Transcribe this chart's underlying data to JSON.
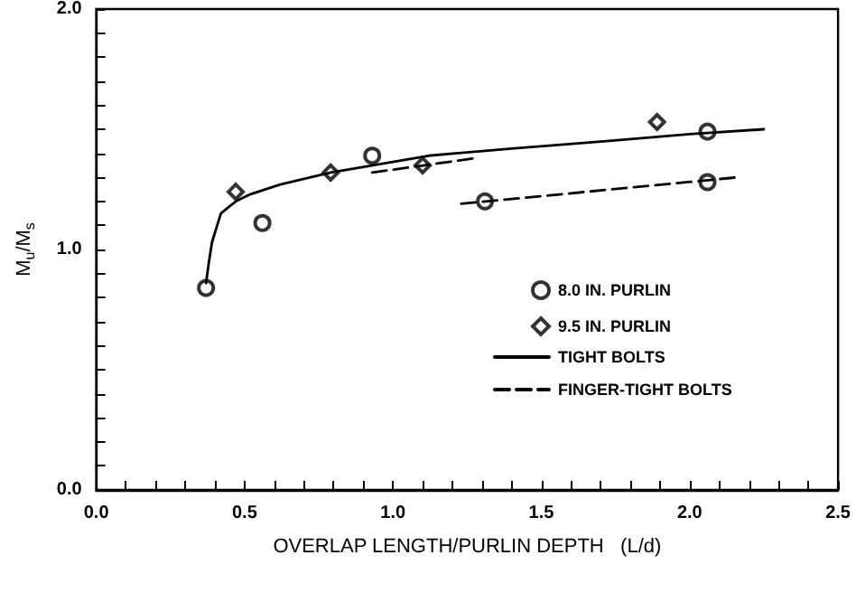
{
  "chart_data": {
    "type": "scatter",
    "xlabel": "OVERLAP LENGTH/PURLIN DEPTH   (L/d)",
    "ylabel": "M$_{u}$/M$_{s}$",
    "xlim": [
      0,
      2.5
    ],
    "xticks": [
      {
        "value": 0,
        "label": "0.0"
      },
      {
        "value": 0.1,
        "label": null
      },
      {
        "value": 0.2,
        "label": null
      },
      {
        "value": 0.3,
        "label": null
      },
      {
        "value": 0.4,
        "label": null
      },
      {
        "value": 0.5,
        "label": "0.5"
      },
      {
        "value": 0.6,
        "label": null
      },
      {
        "value": 0.7,
        "label": null
      },
      {
        "value": 0.8,
        "label": null
      },
      {
        "value": 0.9,
        "label": null
      },
      {
        "value": 1,
        "label": "1.0"
      },
      {
        "value": 1.1,
        "label": null
      },
      {
        "value": 1.2,
        "label": null
      },
      {
        "value": 1.3,
        "label": null
      },
      {
        "value": 1.4,
        "label": null
      },
      {
        "value": 1.5,
        "label": "1.5"
      },
      {
        "value": 1.6,
        "label": null
      },
      {
        "value": 1.7,
        "label": null
      },
      {
        "value": 1.8,
        "label": null
      },
      {
        "value": 1.9,
        "label": null
      },
      {
        "value": 2,
        "label": "2.0"
      },
      {
        "value": 2.1,
        "label": null
      },
      {
        "value": 2.2,
        "label": null
      },
      {
        "value": 2.3,
        "label": null
      },
      {
        "value": 2.4,
        "label": null
      },
      {
        "value": 2.5,
        "label": "2.5"
      }
    ],
    "ylim": [
      0,
      2
    ],
    "yticks": [
      {
        "value": 0,
        "label": "0.0"
      },
      {
        "value": 0.1,
        "label": null
      },
      {
        "value": 0.2,
        "label": null
      },
      {
        "value": 0.3,
        "label": null
      },
      {
        "value": 0.4,
        "label": null
      },
      {
        "value": 0.5,
        "label": null
      },
      {
        "value": 0.6,
        "label": null
      },
      {
        "value": 0.7,
        "label": null
      },
      {
        "value": 0.8,
        "label": null
      },
      {
        "value": 0.9,
        "label": null
      },
      {
        "value": 1,
        "label": "1.0"
      },
      {
        "value": 1.1,
        "label": null
      },
      {
        "value": 1.2,
        "label": null
      },
      {
        "value": 1.3,
        "label": null
      },
      {
        "value": 1.4,
        "label": null
      },
      {
        "value": 1.5,
        "label": null
      },
      {
        "value": 1.6,
        "label": null
      },
      {
        "value": 1.7,
        "label": null
      },
      {
        "value": 1.8,
        "label": null
      },
      {
        "value": 1.9,
        "label": null
      },
      {
        "value": 2,
        "label": "2.0"
      }
    ],
    "grid": false,
    "legend": "right",
    "series": [
      {
        "name": "8.0 IN. PURLIN",
        "type": "scatter",
        "marker": "circle",
        "color": "#000000",
        "x": [
          0.37,
          0.56,
          0.93,
          1.31,
          2.06,
          2.06
        ],
        "values": [
          0.84,
          1.11,
          1.39,
          1.2,
          1.49,
          1.28
        ]
      },
      {
        "name": "9.5 IN. PURLIN",
        "type": "scatter",
        "marker": "diamond",
        "color": "#000000",
        "x": [
          0.47,
          0.79,
          1.1,
          1.89
        ],
        "values": [
          1.24,
          1.32,
          1.35,
          1.53
        ]
      },
      {
        "name": "TIGHT BOLTS",
        "type": "line",
        "marker": "none",
        "line_style": "solid",
        "color": "#000000",
        "x": [
          0.37,
          0.38,
          0.39,
          0.42,
          0.47,
          0.52,
          0.62,
          0.79,
          1.12,
          1.4,
          1.71,
          2.0,
          2.25
        ],
        "values": [
          0.86,
          0.95,
          1.03,
          1.15,
          1.2,
          1.23,
          1.27,
          1.32,
          1.39,
          1.42,
          1.45,
          1.48,
          1.5
        ]
      },
      {
        "name": "FINGER-TIGHT BOLTS",
        "type": "line",
        "marker": "none",
        "line_style": "dashed",
        "color": "#000000",
        "x": [
          0.93,
          1.28
        ],
        "values": [
          1.32,
          1.38
        ]
      },
      {
        "type": "line",
        "marker": "none",
        "line_style": "dashed",
        "color": "#000000",
        "x": [
          1.23,
          2.16
        ],
        "values": [
          1.19,
          1.3
        ]
      }
    ]
  }
}
